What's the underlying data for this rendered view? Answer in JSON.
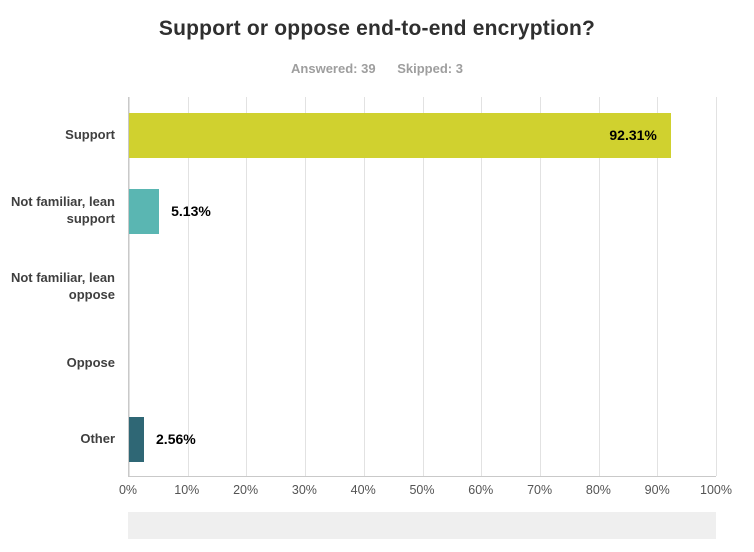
{
  "header": {
    "title": "Support or oppose end-to-end encryption?",
    "answered_label": "Answered: 39",
    "skipped_label": "Skipped: 3"
  },
  "chart_data": {
    "type": "bar",
    "orientation": "horizontal",
    "title": "Support or oppose end-to-end encryption?",
    "answered": 39,
    "skipped": 3,
    "categories": [
      "Support",
      "Not familiar, lean support",
      "Not familiar, lean oppose",
      "Oppose",
      "Other"
    ],
    "values": [
      92.31,
      5.13,
      0,
      0,
      2.56
    ],
    "value_labels": [
      "92.31%",
      "5.13%",
      "",
      "",
      "2.56%"
    ],
    "bar_colors": [
      "#d0d12f",
      "#5ab6b2",
      null,
      null,
      "#2f6775"
    ],
    "xlim": [
      0,
      100
    ],
    "x_ticks": [
      "0%",
      "10%",
      "20%",
      "30%",
      "40%",
      "50%",
      "60%",
      "70%",
      "80%",
      "90%",
      "100%"
    ],
    "grid": true,
    "xlabel": "",
    "ylabel": ""
  }
}
